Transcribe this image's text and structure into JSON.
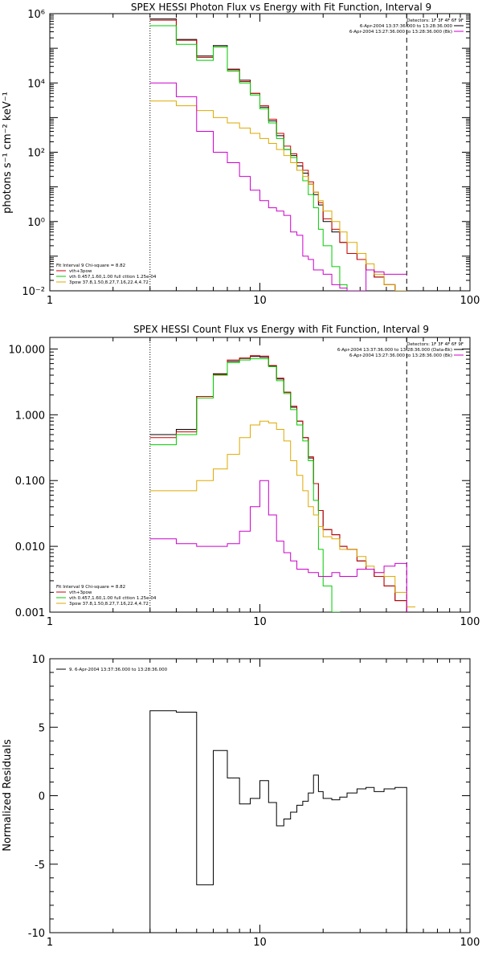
{
  "chart_data": [
    {
      "type": "line",
      "title": "SPEX HESSI Photon Flux vs Energy with Fit Function, Interval 9",
      "ylabel": "photons s⁻¹ cm⁻² keV⁻¹",
      "xscale": "log",
      "yscale": "log",
      "xlim": [
        1,
        100
      ],
      "ylim": [
        0.01,
        1000000
      ],
      "xticks": [
        1,
        10,
        100
      ],
      "xtick_labels": [
        "1",
        "10",
        "100"
      ],
      "yticks": [
        0.01,
        1,
        100,
        10000,
        1000000
      ],
      "ytick_labels": [
        "10⁻²",
        "10⁰",
        "10²",
        "10⁴",
        "10⁶"
      ],
      "vlines": [
        {
          "x": 3,
          "style": "dotted"
        },
        {
          "x": 50,
          "style": "dashed"
        }
      ],
      "edges": [
        3,
        4,
        5,
        6,
        7,
        8,
        9,
        10,
        11,
        12,
        13,
        14,
        15,
        16,
        17,
        18,
        19,
        20,
        22,
        24,
        26,
        29,
        32,
        35,
        39,
        44,
        50
      ],
      "legend_top": {
        "header": "Detectors: 1F 3F 4F 6F 9F",
        "entries": [
          {
            "text": "6-Apr-2004 13:37:36.000 to 13:28:36.000",
            "color": "#000000"
          },
          {
            "text": "6-Apr-2004 13:27:36.000 to 13:28:36.000 (Bk)",
            "color": "#cc00cc"
          }
        ]
      },
      "legend_bottom": {
        "header": "Fit Interval 9   Chi-square = 8.82",
        "entries": [
          {
            "text": "vth+3pow",
            "color": "#cc0000"
          },
          {
            "text": "vth 0.457,1.60,1.00  full cttion 1.25e-04",
            "color": "#00cc00"
          },
          {
            "text": "3pow 37.8,1.50,8.27,7.16,22.4,4.72",
            "color": "#ddaa00"
          }
        ]
      },
      "series": [
        {
          "color": "#000000",
          "values": [
            700000,
            180000,
            60000,
            120000,
            25000,
            12000,
            5000,
            2000,
            800,
            300,
            120,
            80,
            40,
            25,
            12,
            6,
            3,
            1,
            0.5,
            0.25,
            0.12,
            0.08,
            0.04,
            0.025,
            0.015,
            0.01
          ]
        },
        {
          "color": "#cc0000",
          "values": [
            650000,
            170000,
            55000,
            110000,
            24000,
            11000,
            5000,
            2200,
            900,
            350,
            150,
            90,
            50,
            30,
            14,
            7,
            3.5,
            1.2,
            0.6,
            0.25,
            0.12,
            0.08,
            0.04,
            0.025,
            0.015,
            0.01
          ]
        },
        {
          "color": "#00cc00",
          "values": [
            450000,
            130000,
            45000,
            110000,
            22000,
            10000,
            4500,
            1800,
            700,
            250,
            120,
            70,
            30,
            15,
            6,
            2.5,
            0.6,
            0.2,
            0.05,
            0.015,
            0.003,
            null,
            null,
            null,
            null,
            null
          ]
        },
        {
          "color": "#ddaa00",
          "values": [
            3000,
            2200,
            1600,
            1000,
            700,
            500,
            350,
            250,
            180,
            120,
            80,
            50,
            30,
            20,
            12,
            7,
            4,
            2,
            1,
            0.5,
            0.25,
            0.12,
            0.06,
            0.03,
            0.015,
            0.008
          ]
        },
        {
          "color": "#cc00cc",
          "values": [
            10000,
            4000,
            400,
            100,
            50,
            20,
            8,
            4,
            2.5,
            2,
            1.5,
            0.5,
            0.4,
            0.1,
            0.08,
            0.04,
            0.04,
            0.03,
            0.015,
            0.012,
            0.01,
            0.008,
            0.04,
            0.035,
            0.03,
            0.03
          ]
        }
      ]
    },
    {
      "type": "line",
      "title": "SPEX HESSI Count Flux vs Energy with Fit Function, Interval 9",
      "ylabel": "",
      "xscale": "log",
      "yscale": "log",
      "xlim": [
        1,
        100
      ],
      "ylim": [
        0.001,
        15
      ],
      "xticks": [
        1,
        10,
        100
      ],
      "xtick_labels": [
        "1",
        "10",
        "100"
      ],
      "yticks": [
        0.001,
        0.01,
        0.1,
        1,
        10
      ],
      "ytick_labels": [
        "0.001",
        "0.010",
        "0.100",
        "1.000",
        "10.000"
      ],
      "vlines": [
        {
          "x": 3,
          "style": "dotted"
        },
        {
          "x": 50,
          "style": "dashed"
        }
      ],
      "edges": [
        3,
        4,
        5,
        6,
        7,
        8,
        9,
        10,
        11,
        12,
        13,
        14,
        15,
        16,
        17,
        18,
        19,
        20,
        22,
        24,
        26,
        29,
        32,
        35,
        39,
        44,
        50,
        55
      ],
      "legend_top": {
        "header": "Detectors: 1F 3F 4F 6F 9F",
        "entries": [
          {
            "text": "6-Apr-2004 13:37:36.000 to 13:28:36.000 (Data-Bk)",
            "color": "#000000"
          },
          {
            "text": "6-Apr-2004 13:27:36.000 to 13:28:36.000 (Bk)",
            "color": "#cc00cc"
          }
        ]
      },
      "legend_bottom": {
        "header": "Fit Interval 9   Chi-square = 8.82",
        "entries": [
          {
            "text": "vth+3pow",
            "color": "#cc0000"
          },
          {
            "text": "vth 0.457,1.60,1.00  full cttion 1.25e-04",
            "color": "#00cc00"
          },
          {
            "text": "3pow 37.8,1.50,8.27,7.16,22.4,4.72",
            "color": "#ddaa00"
          }
        ]
      },
      "series": [
        {
          "color": "#000000",
          "values": [
            0.5,
            0.6,
            1.9,
            4.2,
            6.5,
            7.2,
            7.7,
            7.5,
            5.5,
            3.5,
            2.2,
            1.3,
            0.8,
            0.45,
            0.22,
            0.09,
            0.035,
            0.018,
            0.015,
            0.01,
            0.009,
            0.006,
            0.0045,
            0.0035,
            0.0025,
            0.0015,
            null
          ]
        },
        {
          "color": "#cc0000",
          "values": [
            0.45,
            0.55,
            1.9,
            4.1,
            6.8,
            7.3,
            7.9,
            7.8,
            5.6,
            3.6,
            2.2,
            1.35,
            0.8,
            0.45,
            0.23,
            0.09,
            0.035,
            0.018,
            0.015,
            0.01,
            0.009,
            0.006,
            0.0045,
            0.0035,
            0.0025,
            0.0015,
            null
          ]
        },
        {
          "color": "#00cc00",
          "values": [
            0.35,
            0.5,
            1.8,
            4,
            6.2,
            6.8,
            7.1,
            7.1,
            5.4,
            3.3,
            2.1,
            1.2,
            0.7,
            0.4,
            0.2,
            0.05,
            0.009,
            0.0025,
            0.0009,
            null,
            null,
            null,
            null,
            null,
            null,
            null,
            null
          ]
        },
        {
          "color": "#ddaa00",
          "values": [
            0.07,
            0.07,
            0.1,
            0.15,
            0.25,
            0.45,
            0.7,
            0.8,
            0.75,
            0.6,
            0.4,
            0.2,
            0.12,
            0.07,
            0.04,
            0.03,
            0.02,
            0.014,
            0.013,
            0.009,
            0.009,
            0.007,
            0.005,
            0.004,
            0.0035,
            0.002,
            0.0012
          ]
        },
        {
          "color": "#cc00cc",
          "values": [
            0.013,
            0.011,
            0.01,
            0.01,
            0.011,
            0.017,
            0.04,
            0.1,
            0.03,
            0.012,
            0.008,
            0.006,
            0.0045,
            0.0045,
            0.004,
            0.004,
            0.0035,
            0.0035,
            0.004,
            0.0035,
            0.0035,
            0.0045,
            0.0045,
            0.004,
            0.005,
            0.0055,
            null
          ]
        }
      ]
    },
    {
      "type": "line",
      "title": "",
      "ylabel": "Normalized Residuals",
      "xscale": "log",
      "yscale": "linear",
      "xlim": [
        1,
        100
      ],
      "ylim": [
        -10,
        10
      ],
      "xticks": [
        1,
        10,
        100
      ],
      "xtick_labels": [
        "1",
        "10",
        "100"
      ],
      "yticks": [
        -10,
        -5,
        0,
        5,
        10
      ],
      "ytick_labels": [
        "-10",
        "-5",
        "0",
        "5",
        "10"
      ],
      "edges": [
        3,
        4,
        5,
        6,
        7,
        8,
        9,
        10,
        11,
        12,
        13,
        14,
        15,
        16,
        17,
        18,
        19,
        20,
        22,
        24,
        26,
        29,
        32,
        35,
        39,
        44,
        50
      ],
      "legend_top_left": {
        "text": "9. 6-Apr-2004 13:37:36.000 to 13:28:36.000",
        "color": "#000000"
      },
      "series": [
        {
          "color": "#000000",
          "values": [
            6.2,
            6.1,
            -6.5,
            3.3,
            1.3,
            -0.6,
            -0.2,
            1.1,
            -0.5,
            -2.2,
            -1.7,
            -1.2,
            -0.7,
            -0.4,
            0.2,
            1.5,
            0.3,
            -0.2,
            -0.3,
            -0.1,
            0.2,
            0.5,
            0.6,
            0.3,
            0.5,
            0.6
          ]
        }
      ]
    }
  ]
}
